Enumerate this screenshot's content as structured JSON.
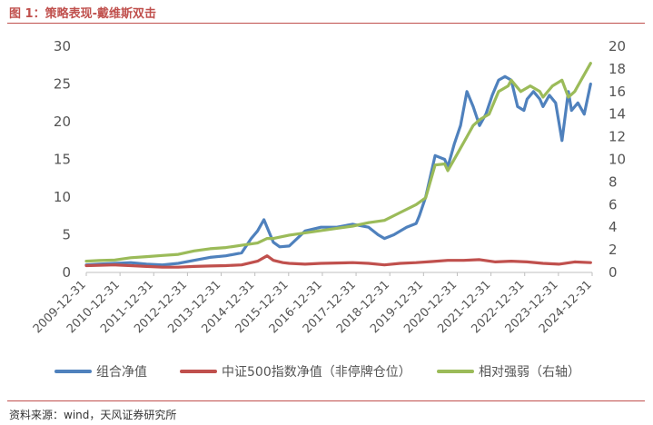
{
  "figure_title": "图 1：策略表现-戴维斯双击",
  "source_note": "资料来源：wind，天风证券研究所",
  "chart_data": {
    "type": "line",
    "title": "",
    "xlabel": "",
    "ylabel": "",
    "legend_position": "bottom",
    "grid": false,
    "x_ticks": [
      "2009-12-31",
      "2010-12-31",
      "2011-12-31",
      "2012-12-31",
      "2013-12-31",
      "2014-12-31",
      "2015-12-31",
      "2016-12-31",
      "2017-12-31",
      "2018-12-31",
      "2019-12-31",
      "2020-12-31",
      "2021-12-31",
      "2022-12-31",
      "2023-12-31",
      "2024-12-31"
    ],
    "y_left": {
      "ylim": [
        0,
        30
      ],
      "ticks": [
        "0",
        "5",
        "10",
        "15",
        "20",
        "25",
        "30"
      ]
    },
    "y_right": {
      "ylim": [
        0,
        20
      ],
      "ticks": [
        "0",
        "2",
        "4",
        "6",
        "8",
        "10",
        "12",
        "14",
        "16",
        "18",
        "20"
      ]
    },
    "series": [
      {
        "name": "组合净值",
        "axis": "left",
        "color": "#4f81bd",
        "x": [
          2009.6,
          2010.0,
          2010.5,
          2011.0,
          2011.5,
          2012.0,
          2012.5,
          2013.0,
          2013.5,
          2014.0,
          2014.5,
          2014.8,
          2015.0,
          2015.2,
          2015.4,
          2015.5,
          2015.7,
          2016.0,
          2016.5,
          2017.0,
          2017.5,
          2018.0,
          2018.5,
          2018.8,
          2019.0,
          2019.3,
          2019.7,
          2020.0,
          2020.1,
          2020.3,
          2020.6,
          2020.9,
          2021.0,
          2021.2,
          2021.4,
          2021.6,
          2021.8,
          2022.0,
          2022.2,
          2022.4,
          2022.6,
          2022.8,
          2023.0,
          2023.2,
          2023.4,
          2023.5,
          2023.7,
          2023.9,
          2024.0,
          2024.2,
          2024.4,
          2024.6,
          2024.8,
          2024.9,
          2025.1,
          2025.3,
          2025.5
        ],
        "y": [
          1.0,
          1.1,
          1.2,
          1.3,
          1.1,
          1.0,
          1.2,
          1.6,
          2.0,
          2.2,
          2.6,
          4.5,
          5.5,
          7.0,
          5.0,
          4.0,
          3.4,
          3.5,
          5.5,
          6.0,
          6.0,
          6.4,
          6.0,
          5.0,
          4.5,
          5.0,
          6.0,
          6.5,
          7.5,
          10.0,
          15.5,
          15.0,
          14.0,
          17.0,
          19.5,
          24.0,
          22.0,
          19.5,
          21.0,
          23.5,
          25.5,
          26.0,
          25.5,
          22.0,
          21.5,
          23.0,
          24.0,
          23.0,
          22.0,
          23.5,
          22.5,
          17.5,
          24.0,
          21.5,
          22.5,
          21.0,
          25.0
        ]
      },
      {
        "name": "中证500指数净值（非停牌仓位）",
        "axis": "left",
        "color": "#c0504d",
        "x": [
          2009.6,
          2010.0,
          2010.5,
          2011.0,
          2011.5,
          2012.0,
          2012.5,
          2013.0,
          2013.5,
          2014.0,
          2014.5,
          2015.0,
          2015.3,
          2015.5,
          2015.8,
          2016.0,
          2016.5,
          2017.0,
          2017.5,
          2018.0,
          2018.5,
          2019.0,
          2019.5,
          2020.0,
          2020.5,
          2021.0,
          2021.5,
          2022.0,
          2022.5,
          2023.0,
          2023.5,
          2024.0,
          2024.5,
          2025.0,
          2025.5
        ],
        "y": [
          0.9,
          0.95,
          1.0,
          0.9,
          0.8,
          0.7,
          0.7,
          0.8,
          0.85,
          0.9,
          1.0,
          1.5,
          2.2,
          1.6,
          1.3,
          1.2,
          1.1,
          1.2,
          1.25,
          1.3,
          1.2,
          1.0,
          1.2,
          1.3,
          1.45,
          1.6,
          1.6,
          1.7,
          1.4,
          1.5,
          1.4,
          1.2,
          1.1,
          1.4,
          1.3
        ]
      },
      {
        "name": "相对强弱（右轴）",
        "axis": "right",
        "color": "#9bbb59",
        "x": [
          2009.6,
          2010.0,
          2010.5,
          2011.0,
          2011.5,
          2012.0,
          2012.5,
          2013.0,
          2013.5,
          2014.0,
          2014.5,
          2015.0,
          2015.3,
          2015.5,
          2016.0,
          2016.5,
          2017.0,
          2017.5,
          2018.0,
          2018.5,
          2019.0,
          2019.5,
          2020.0,
          2020.3,
          2020.6,
          2020.9,
          2021.0,
          2021.3,
          2021.6,
          2021.8,
          2022.0,
          2022.3,
          2022.6,
          2022.9,
          2023.0,
          2023.3,
          2023.6,
          2023.9,
          2024.0,
          2024.3,
          2024.6,
          2024.8,
          2025.0,
          2025.2,
          2025.5
        ],
        "y": [
          1.0,
          1.05,
          1.1,
          1.3,
          1.4,
          1.5,
          1.6,
          1.9,
          2.1,
          2.2,
          2.4,
          2.6,
          3.0,
          3.0,
          3.3,
          3.5,
          3.7,
          3.9,
          4.1,
          4.4,
          4.6,
          5.3,
          6.0,
          6.6,
          9.5,
          9.6,
          9.0,
          10.5,
          12.0,
          13.0,
          13.5,
          14.0,
          16.0,
          16.5,
          17.0,
          16.0,
          16.5,
          16.0,
          15.5,
          16.5,
          17.0,
          15.5,
          16.0,
          17.0,
          18.5
        ]
      }
    ]
  }
}
